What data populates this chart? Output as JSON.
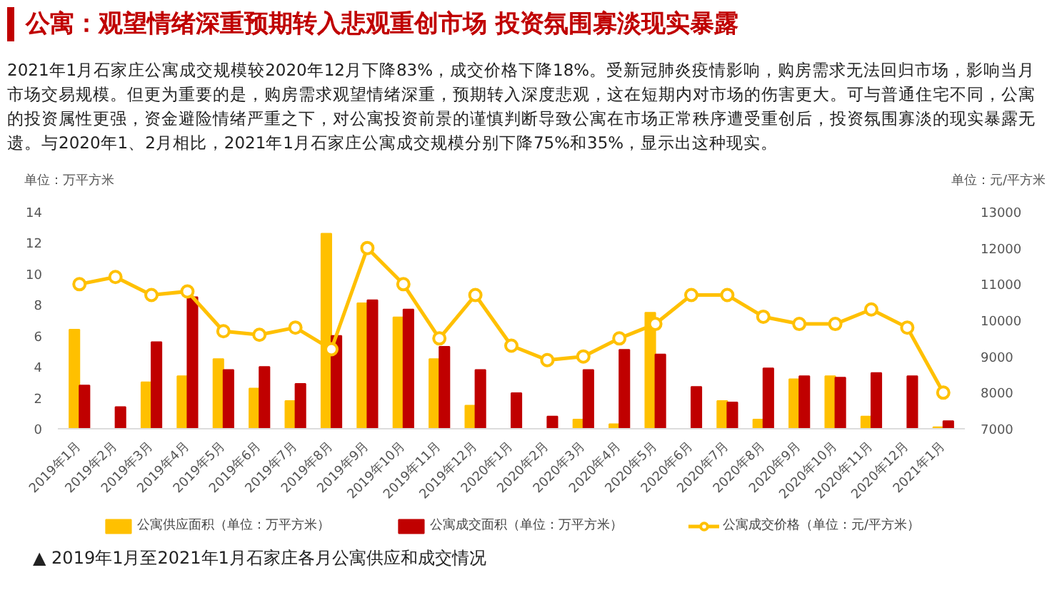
{
  "chart_data": {
    "type": "bar",
    "title": "公寓：观望情绪深重预期转入悲观重创市场 投资氛围寡淡现实暴露",
    "subtitle": "2021年1月石家庄公寓成交规模较2020年12月下降83%，成交价格下降18%。受新冠肺炎疫情影响，购房需求无法回归市场，影响当月市场交易规模。但更为重要的是，购房需求观望情绪深重，预期转入深度悲观，这在短期内对市场的伤害更大。可与普通住宅不同，公寓的投资属性更强，资金避险情绪严重之下，对公寓投资前景的谨慎判断导致公寓在市场正常秩序遭受重创后，投资氛围寡淡的现实暴露无遗。与2020年1、2月相比，2021年1月石家庄公寓成交规模分别下降75%和35%，显示出这种现实。",
    "ylabel": "单位：万平方米",
    "y2label": "单位：元/平方米",
    "annotations": [
      "▲ 2019年1月至2021年1月石家庄各月公寓供应和成交情况"
    ],
    "categories": [
      "2019年1月",
      "2019年2月",
      "2019年3月",
      "2019年4月",
      "2019年5月",
      "2019年6月",
      "2019年7月",
      "2019年8月",
      "2019年9月",
      "2019年10月",
      "2019年11月",
      "2019年12月",
      "2020年1月",
      "2020年2月",
      "2020年3月",
      "2020年4月",
      "2020年5月",
      "2020年6月",
      "2020年7月",
      "2020年8月",
      "2020年9月",
      "2020年10月",
      "2020年11月",
      "2020年12月",
      "2021年1月"
    ],
    "series": [
      {
        "name": "公寓供应面积（单位：万平方米）",
        "color": "#ffc000",
        "values": [
          6.4,
          0,
          3.0,
          3.4,
          4.5,
          2.6,
          1.8,
          12.6,
          8.1,
          7.2,
          4.5,
          1.5,
          0,
          0,
          0.6,
          0.3,
          7.5,
          0,
          1.8,
          0.6,
          3.2,
          3.4,
          0.8,
          0,
          0.1
        ]
      },
      {
        "name": "公寓成交面积（单位：万平方米）",
        "color": "#c00000",
        "values": [
          2.8,
          1.4,
          5.6,
          8.5,
          3.8,
          4.0,
          2.9,
          6.0,
          8.3,
          7.7,
          5.3,
          3.8,
          2.3,
          0.8,
          3.8,
          5.1,
          4.8,
          2.7,
          1.7,
          3.9,
          3.4,
          3.3,
          3.6,
          3.4,
          0.5
        ]
      },
      {
        "name": "公寓成交价格（单位：元/平方米）",
        "color": "#ffc000",
        "type": "line",
        "axis": "y2",
        "values": [
          11000,
          11200,
          10700,
          10800,
          9700,
          9600,
          9800,
          9200,
          12000,
          11000,
          9500,
          10700,
          9300,
          8900,
          9000,
          9500,
          9900,
          10700,
          10700,
          10100,
          9900,
          9900,
          10300,
          9800,
          8000
        ]
      }
    ],
    "ylim": [
      0,
      14
    ],
    "yticks": [
      0,
      2,
      4,
      6,
      8,
      10,
      12,
      14
    ],
    "y2lim": [
      7000,
      13000
    ],
    "y2ticks": [
      7000,
      8000,
      9000,
      10000,
      11000,
      12000,
      13000
    ],
    "legend": "bottom",
    "marker": "circle",
    "line_style": "solid"
  }
}
